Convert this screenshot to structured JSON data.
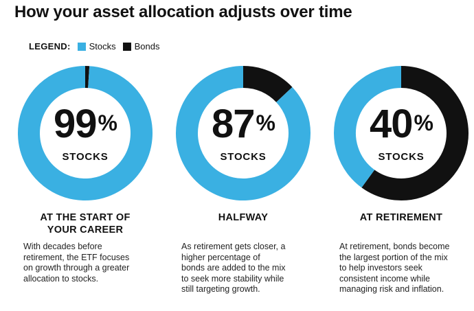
{
  "title": "How your asset allocation adjusts over time",
  "legend": {
    "label": "LEGEND:",
    "items": [
      {
        "name": "Stocks",
        "color": "#3ab0e2"
      },
      {
        "name": "Bonds",
        "color": "#111111"
      }
    ]
  },
  "panels": [
    {
      "percent": "99",
      "percent_sign": "%",
      "label": "STOCKS",
      "heading": [
        "AT THE START OF",
        "YOUR CAREER"
      ],
      "description": [
        "With decades before",
        "retirement, the ETF focuses",
        "on growth through a greater",
        "allocation to stocks."
      ]
    },
    {
      "percent": "87",
      "percent_sign": "%",
      "label": "STOCKS",
      "heading": [
        "HALFWAY"
      ],
      "description": [
        "As retirement gets closer, a",
        "higher percentage of",
        "bonds are added to the mix",
        "to seek more stability while",
        "still targeting growth."
      ]
    },
    {
      "percent": "40",
      "percent_sign": "%",
      "label": "STOCKS",
      "heading": [
        "AT RETIREMENT"
      ],
      "description": [
        "At retirement, bonds become",
        "the largest portion of the mix",
        "to help investors seek",
        "consistent income while",
        "managing risk and inflation."
      ]
    }
  ],
  "chart_data": [
    {
      "type": "pie",
      "categories": [
        "Stocks",
        "Bonds"
      ],
      "values": [
        99,
        1
      ],
      "colors": [
        "#3ab0e2",
        "#111111"
      ],
      "style": "donut"
    },
    {
      "type": "pie",
      "categories": [
        "Stocks",
        "Bonds"
      ],
      "values": [
        87,
        13
      ],
      "colors": [
        "#3ab0e2",
        "#111111"
      ],
      "style": "donut"
    },
    {
      "type": "pie",
      "categories": [
        "Stocks",
        "Bonds"
      ],
      "values": [
        40,
        60
      ],
      "colors": [
        "#3ab0e2",
        "#111111"
      ],
      "style": "donut"
    }
  ]
}
